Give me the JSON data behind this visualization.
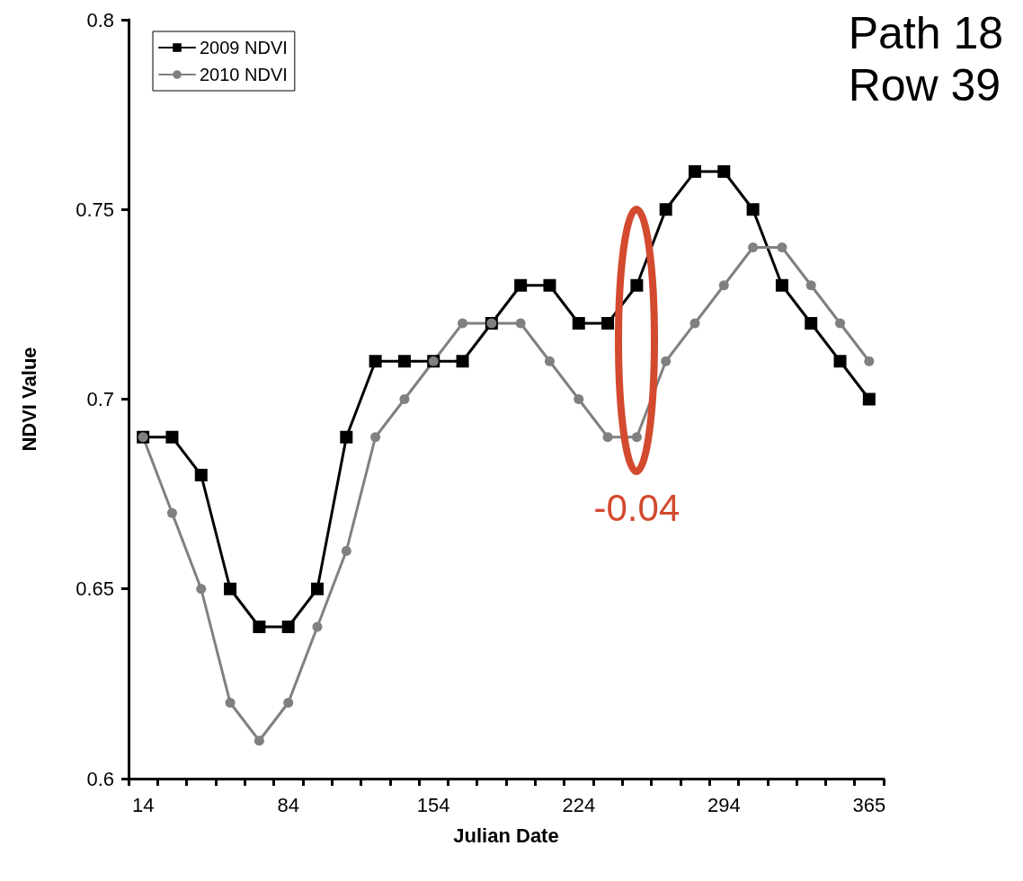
{
  "chart_data": {
    "type": "line",
    "title": "Path 18\nRow 39",
    "xlabel": "Julian Date",
    "ylabel": "NDVI Value",
    "categories": [
      "14",
      null,
      null,
      null,
      null,
      "84",
      null,
      null,
      null,
      null,
      "154",
      null,
      null,
      null,
      null,
      "224",
      null,
      null,
      null,
      null,
      "294",
      null,
      null,
      null,
      null,
      "365"
    ],
    "series": [
      {
        "name": "2009 NDVI",
        "color": "#000000",
        "marker": "square",
        "values": [
          0.69,
          0.69,
          0.68,
          0.65,
          0.64,
          0.64,
          0.65,
          0.69,
          0.71,
          0.71,
          0.71,
          0.71,
          0.72,
          0.73,
          0.73,
          0.72,
          0.72,
          0.73,
          0.75,
          0.76,
          0.76,
          0.75,
          0.73,
          0.72,
          0.71,
          0.7
        ]
      },
      {
        "name": "2010 NDVI",
        "color": "#808080",
        "marker": "circle",
        "values": [
          0.69,
          0.67,
          0.65,
          0.62,
          0.61,
          0.62,
          0.64,
          0.66,
          0.69,
          0.7,
          0.71,
          0.72,
          0.72,
          0.72,
          0.71,
          0.7,
          0.69,
          0.69,
          0.71,
          0.72,
          0.73,
          0.74,
          0.74,
          0.73,
          0.72,
          0.71
        ]
      }
    ],
    "ylim": [
      0.6,
      0.8
    ],
    "yticks": [
      0.6,
      0.65,
      0.7,
      0.75,
      0.8
    ],
    "grid": false,
    "legend": "top left",
    "line_style": "solid",
    "annotations": [
      "-0.04"
    ]
  }
}
